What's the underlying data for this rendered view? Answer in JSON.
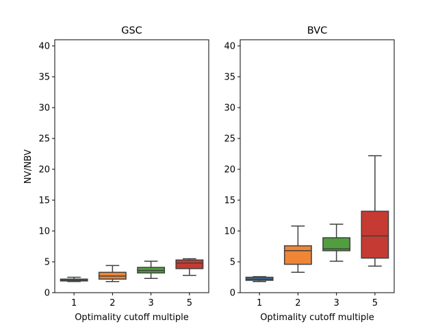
{
  "chart_data": [
    {
      "type": "box",
      "title": "GSC",
      "xlabel": "Optimality cutoff multiple",
      "ylabel": "NV/NBV",
      "ylim": [
        0,
        41
      ],
      "yticks": [
        0,
        5,
        10,
        15,
        20,
        25,
        30,
        35,
        40
      ],
      "categories": [
        "1",
        "2",
        "3",
        "5"
      ],
      "boxes": [
        {
          "category": "1",
          "color": "#3b75af",
          "whisker_low": 1.8,
          "q1": 1.9,
          "median": 2.0,
          "q3": 2.2,
          "whisker_high": 2.5
        },
        {
          "category": "2",
          "color": "#ef8636",
          "whisker_low": 1.8,
          "q1": 2.2,
          "median": 2.7,
          "q3": 3.3,
          "whisker_high": 4.4
        },
        {
          "category": "3",
          "color": "#519e3e",
          "whisker_low": 2.3,
          "q1": 3.2,
          "median": 3.6,
          "q3": 4.1,
          "whisker_high": 5.1
        },
        {
          "category": "5",
          "color": "#c53a32",
          "whisker_low": 2.8,
          "q1": 3.9,
          "median": 4.8,
          "q3": 5.3,
          "whisker_high": 5.5
        }
      ]
    },
    {
      "type": "box",
      "title": "BVC",
      "xlabel": "Optimality cutoff multiple",
      "ylabel": "",
      "ylim": [
        0,
        41
      ],
      "yticks": [
        0,
        5,
        10,
        15,
        20,
        25,
        30,
        35,
        40
      ],
      "categories": [
        "1",
        "2",
        "3",
        "5"
      ],
      "boxes": [
        {
          "category": "1",
          "color": "#3b75af",
          "whisker_low": 1.8,
          "q1": 2.0,
          "median": 2.2,
          "q3": 2.5,
          "whisker_high": 2.6
        },
        {
          "category": "2",
          "color": "#ef8636",
          "whisker_low": 3.3,
          "q1": 4.6,
          "median": 6.8,
          "q3": 7.6,
          "whisker_high": 10.8
        },
        {
          "category": "3",
          "color": "#519e3e",
          "whisker_low": 5.1,
          "q1": 6.8,
          "median": 7.1,
          "q3": 8.9,
          "whisker_high": 11.1
        },
        {
          "category": "5",
          "color": "#c53a32",
          "whisker_low": 4.3,
          "q1": 5.6,
          "median": 9.2,
          "q3": 13.2,
          "whisker_high": 22.2
        }
      ]
    }
  ]
}
